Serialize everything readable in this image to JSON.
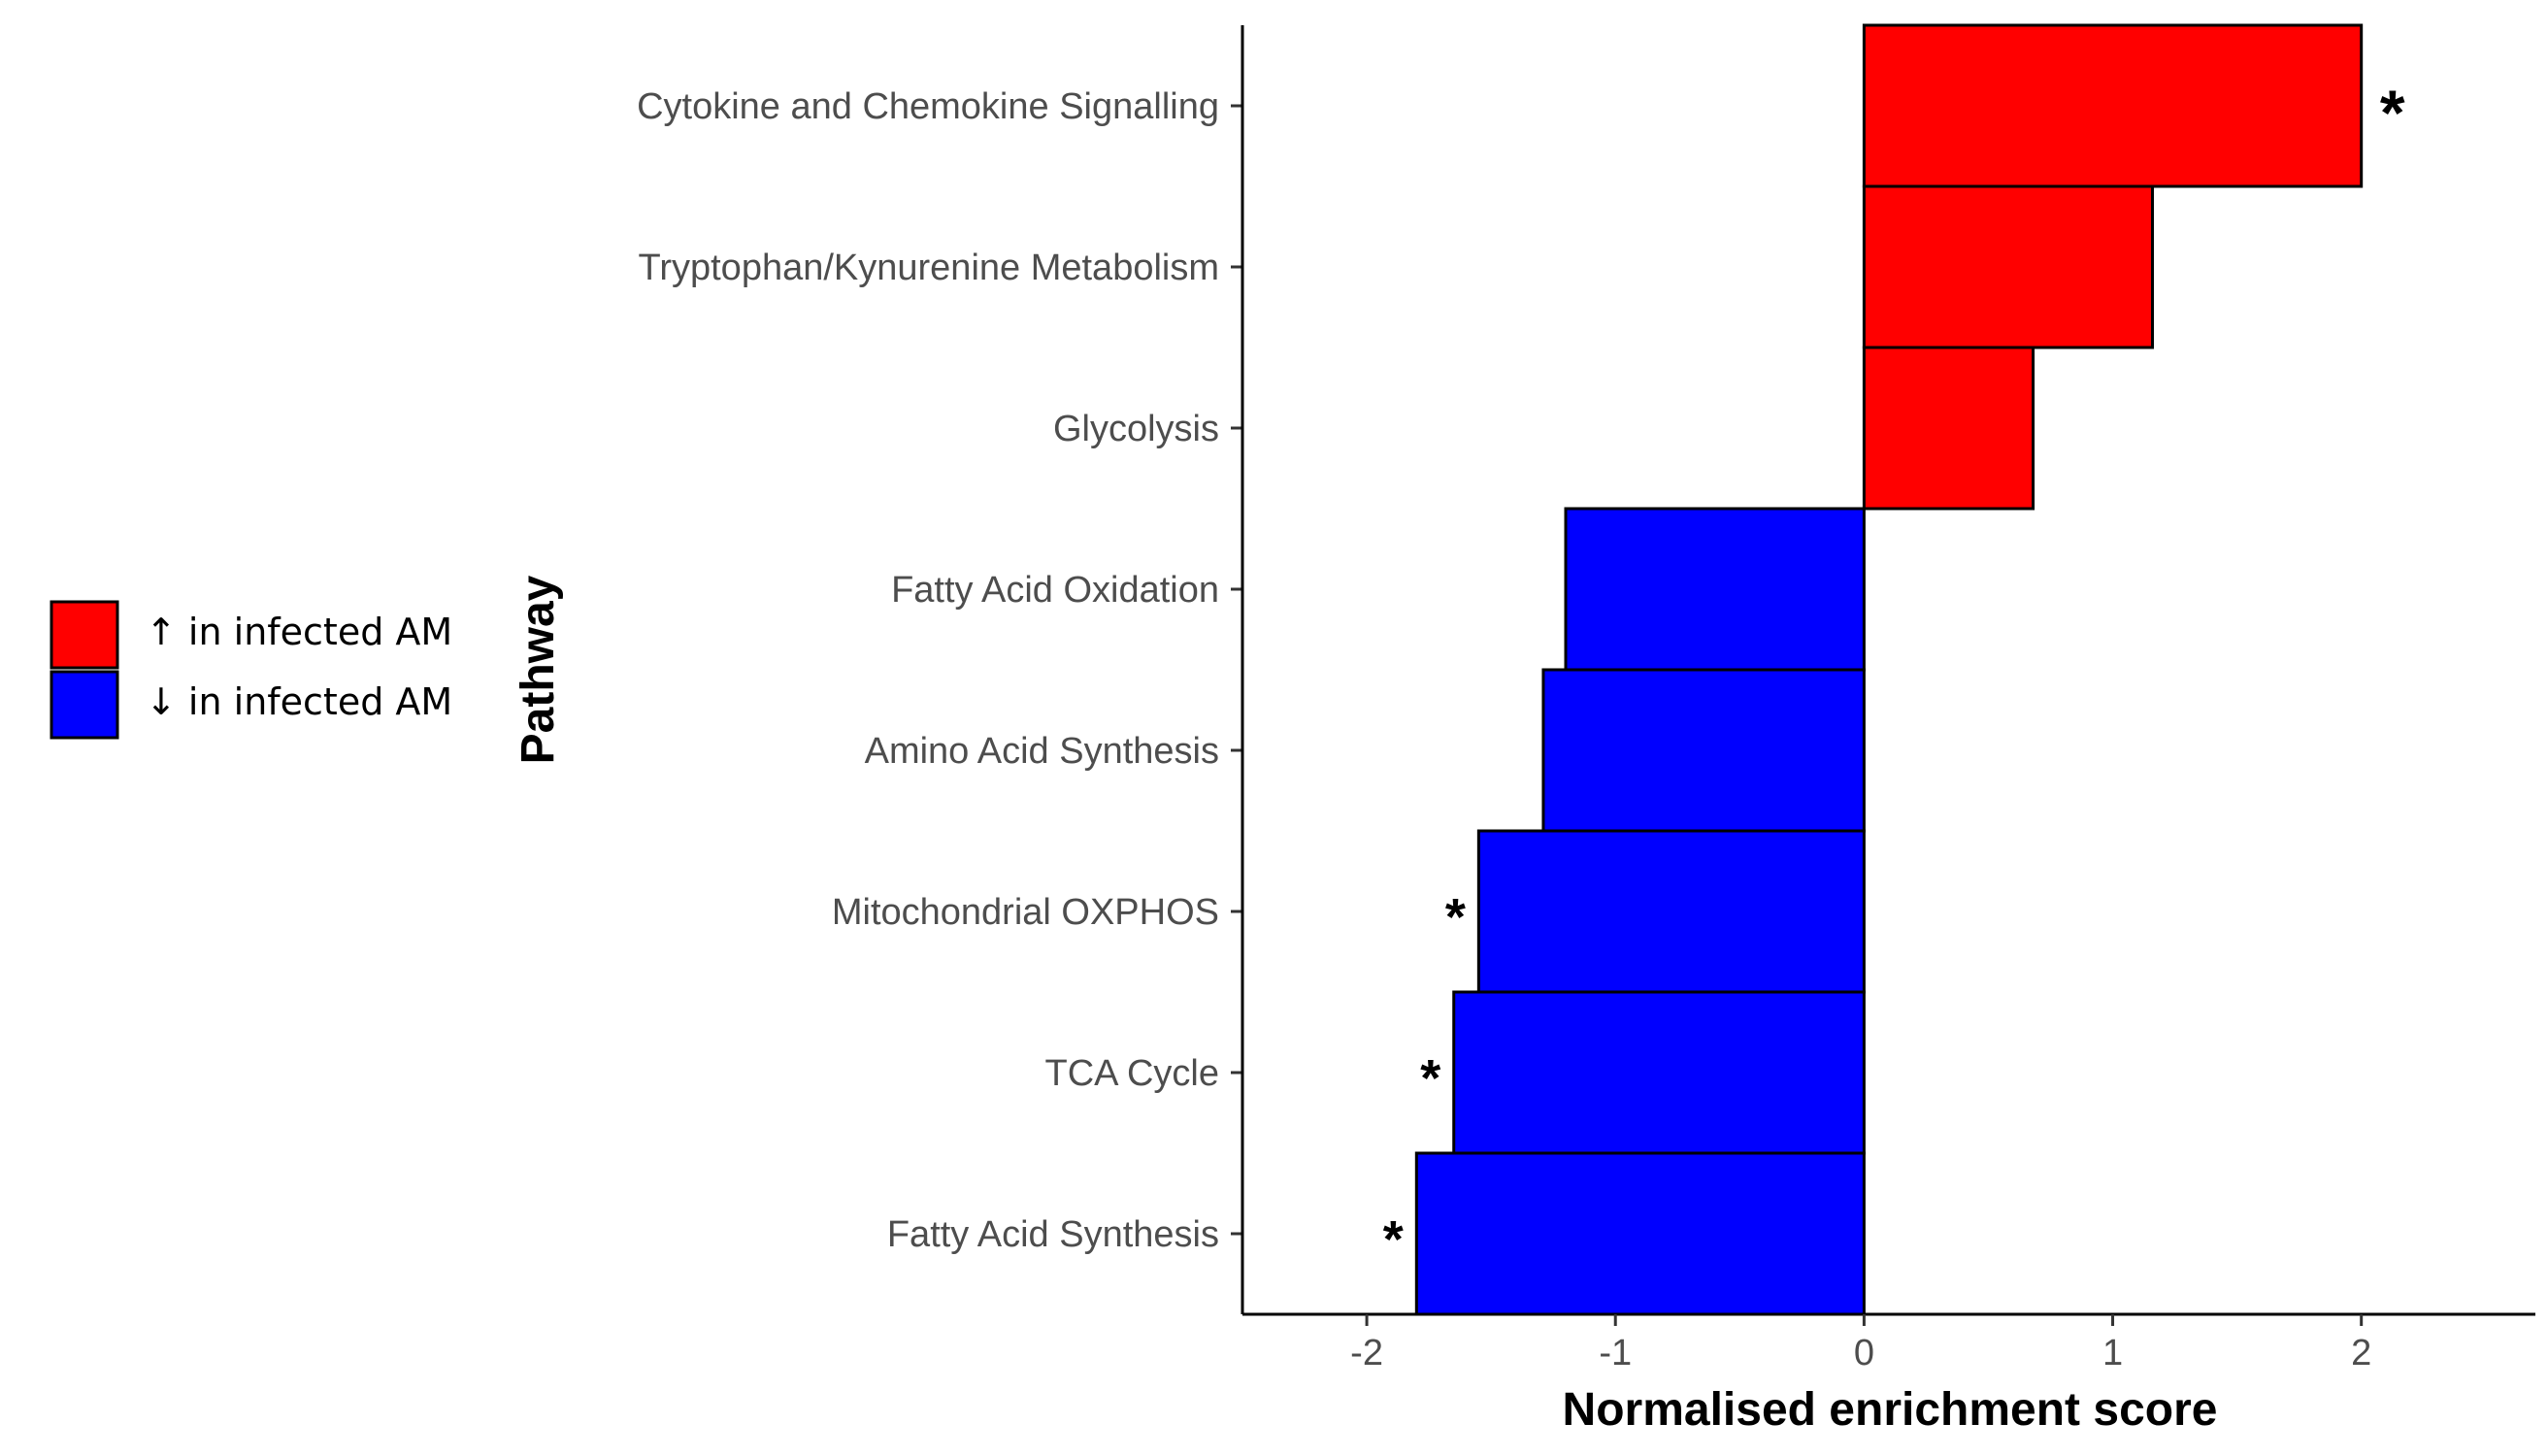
{
  "chart_data": {
    "type": "bar",
    "orientation": "horizontal",
    "xlabel": "Normalised enrichment score",
    "ylabel": "Pathway",
    "xlim": [
      -2.5,
      2.7
    ],
    "xticks": [
      -2,
      -1,
      0,
      1,
      2
    ],
    "xtick_labels": [
      "-2",
      "-1",
      "0",
      "1",
      "2"
    ],
    "categories": [
      "Cytokine and Chemokine Signalling",
      "Tryptophan/Kynurenine Metabolism",
      "Glycolysis",
      "Fatty Acid Oxidation",
      "Amino Acid Synthesis",
      "Mitochondrial OXPHOS",
      "TCA Cycle",
      "Fatty Acid Synthesis"
    ],
    "values": [
      2.0,
      1.16,
      0.68,
      -1.2,
      -1.29,
      -1.55,
      -1.65,
      -1.8
    ],
    "significance": [
      "*",
      "",
      "",
      "",
      "",
      "*",
      "*",
      "*"
    ],
    "colors": {
      "up": "#ff0000",
      "down": "#0000ff",
      "outline": "#000000"
    },
    "legend": {
      "position": "left",
      "entries": [
        {
          "label": "↑ in infected AM",
          "color": "#ff0000"
        },
        {
          "label": "↓ in infected AM",
          "color": "#0000ff"
        }
      ]
    },
    "grid": false
  }
}
